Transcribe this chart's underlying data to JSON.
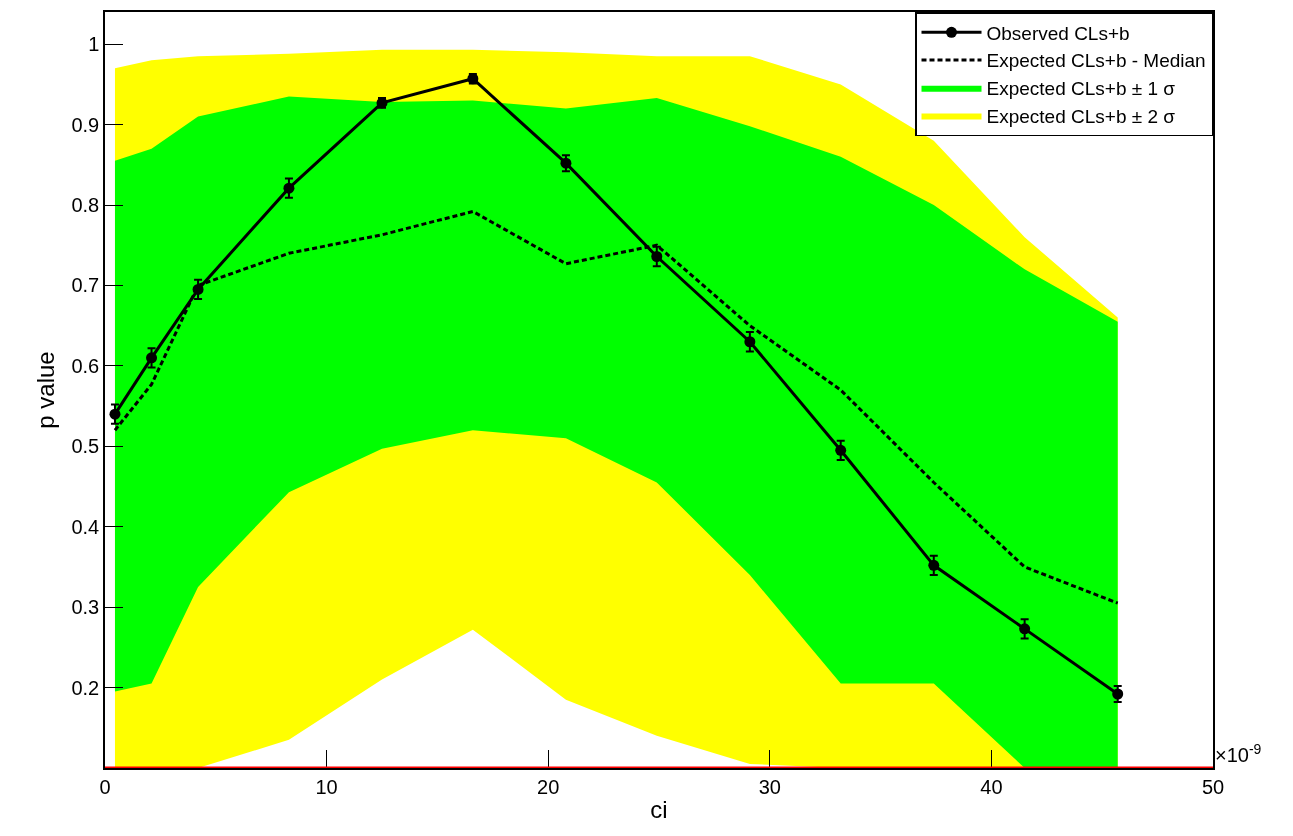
{
  "chart_data": {
    "type": "line",
    "xlabel": "ci",
    "ylabel": "p value",
    "x": [
      0.45,
      2.1,
      4.2,
      8.3,
      12.5,
      16.6,
      20.8,
      24.9,
      29.1,
      33.2,
      37.4,
      41.5,
      45.7
    ],
    "series": [
      {
        "name": "Expected CLs+b ± 2 σ",
        "type": "area",
        "color": "#ffff00",
        "values": [
          null,
          null,
          null,
          null,
          null,
          null,
          null,
          null,
          null,
          null,
          null,
          null,
          null
        ],
        "lower": [
          0.1,
          0.1,
          0.1,
          0.135,
          0.21,
          0.272,
          0.185,
          0.14,
          0.105,
          0.1,
          0.1,
          0.1,
          0.1
        ],
        "upper": [
          0.97,
          0.98,
          0.985,
          0.988,
          0.993,
          0.993,
          0.99,
          0.985,
          0.985,
          0.95,
          0.88,
          0.76,
          0.66
        ]
      },
      {
        "name": "Expected CLs+b ± 1 σ",
        "type": "area",
        "color": "#00ff00",
        "values": [
          null,
          null,
          null,
          null,
          null,
          null,
          null,
          null,
          null,
          null,
          null,
          null,
          null
        ],
        "lower": [
          0.195,
          0.205,
          0.325,
          0.443,
          0.497,
          0.52,
          0.51,
          0.455,
          0.34,
          0.205,
          0.205,
          0.1,
          0.1
        ],
        "upper": [
          0.855,
          0.87,
          0.91,
          0.935,
          0.928,
          0.93,
          0.92,
          0.933,
          0.898,
          0.86,
          0.8,
          0.72,
          0.655
        ]
      },
      {
        "name": "Expected CLs+b - Median",
        "color": "#000000",
        "line_style": "dashed",
        "marker": "none",
        "values": [
          0.52,
          0.577,
          0.7,
          0.74,
          0.763,
          0.792,
          0.727,
          0.75,
          0.65,
          0.57,
          0.455,
          0.35,
          0.305
        ]
      },
      {
        "name": "Observed CLs+b",
        "color": "#000000",
        "line_style": "solid",
        "marker": "circle",
        "values": [
          0.54,
          0.61,
          0.695,
          0.821,
          0.927,
          0.957,
          0.852,
          0.736,
          0.63,
          0.495,
          0.352,
          0.273,
          0.192
        ],
        "errors": [
          0.012,
          0.012,
          0.012,
          0.012,
          0.006,
          0.006,
          0.01,
          0.012,
          0.012,
          0.012,
          0.012,
          0.012,
          0.01
        ]
      }
    ],
    "xlim": [
      0,
      50
    ],
    "xticks": [
      0,
      10,
      20,
      30,
      40,
      50
    ],
    "ylim": [
      0.1,
      1.04
    ],
    "yticks": [
      {
        "value": 0.2,
        "label": "0.2"
      },
      {
        "value": 0.3,
        "label": "0.3"
      },
      {
        "value": 0.4,
        "label": "0.4"
      },
      {
        "value": 0.5,
        "label": "0.5"
      },
      {
        "value": 0.6,
        "label": "0.6"
      },
      {
        "value": 0.7,
        "label": "0.7"
      },
      {
        "value": 0.8,
        "label": "0.8"
      },
      {
        "value": 0.9,
        "label": "0.9"
      },
      1
    ],
    "ref_lines": [
      {
        "axis": "y",
        "value": 0.1,
        "color": "#ff0000"
      }
    ],
    "annotations": [
      "×10$^{-9}$"
    ],
    "grid": false,
    "legend": "top right"
  }
}
